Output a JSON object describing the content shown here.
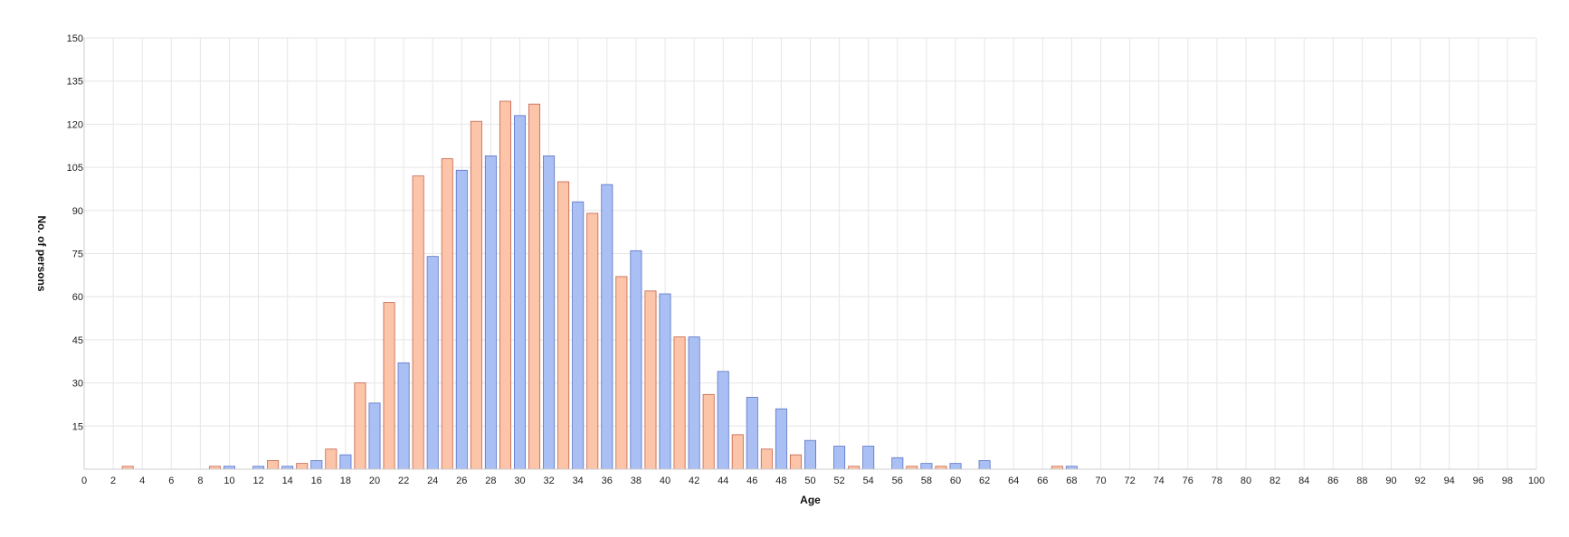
{
  "chart_data": {
    "type": "bar",
    "title": "",
    "xlabel": "Age",
    "ylabel": "No. of persons",
    "xlim": [
      0,
      100
    ],
    "ylim": [
      0,
      150
    ],
    "xticks": [
      0,
      2,
      4,
      6,
      8,
      10,
      12,
      14,
      16,
      18,
      20,
      22,
      24,
      26,
      28,
      30,
      32,
      34,
      36,
      38,
      40,
      42,
      44,
      46,
      48,
      50,
      52,
      54,
      56,
      58,
      60,
      62,
      64,
      66,
      68,
      70,
      72,
      74,
      76,
      78,
      80,
      82,
      84,
      86,
      88,
      90,
      92,
      94,
      96,
      98,
      100
    ],
    "yticks": [
      15,
      30,
      45,
      60,
      75,
      90,
      105,
      120,
      135,
      150
    ],
    "grid": true,
    "legend": "none",
    "colors": {
      "odd_fill": "#fcc4a8",
      "odd_stroke": "#c4624a",
      "even_fill": "#aac0f4",
      "even_stroke": "#5a72c4",
      "grid": "#e6e6e6",
      "axis": "#cccccc"
    },
    "x": [
      3,
      9,
      10,
      12,
      13,
      14,
      15,
      16,
      17,
      18,
      19,
      20,
      21,
      22,
      23,
      24,
      25,
      26,
      27,
      28,
      29,
      30,
      31,
      32,
      33,
      34,
      35,
      36,
      37,
      38,
      39,
      40,
      41,
      42,
      43,
      44,
      45,
      46,
      47,
      48,
      49,
      50,
      52,
      53,
      54,
      56,
      57,
      58,
      59,
      60,
      62,
      67,
      68
    ],
    "values": [
      1,
      1,
      1,
      1,
      3,
      1,
      2,
      3,
      7,
      5,
      30,
      23,
      58,
      37,
      102,
      74,
      108,
      104,
      121,
      109,
      128,
      123,
      127,
      109,
      100,
      93,
      89,
      99,
      67,
      76,
      62,
      61,
      46,
      46,
      26,
      34,
      12,
      25,
      7,
      21,
      5,
      10,
      8,
      1,
      8,
      4,
      1,
      2,
      1,
      2,
      3,
      1,
      1
    ]
  }
}
